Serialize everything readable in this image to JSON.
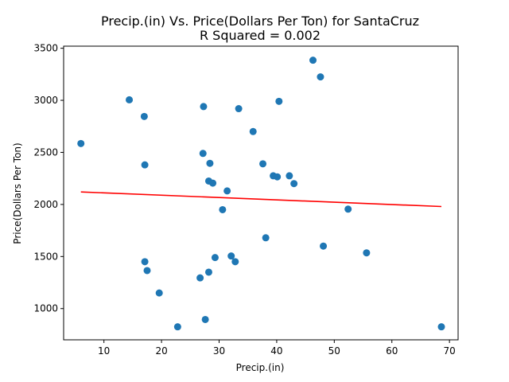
{
  "chart_data": {
    "type": "scatter",
    "title": "Precip.(in) Vs. Price(Dollars Per Ton) for SantaCruz",
    "subtitle": "R Squared =  0.002",
    "xlabel": "Precip.(in)",
    "ylabel": "Price(Dollars Per Ton)",
    "xlim": [
      3,
      71.5
    ],
    "ylim": [
      700,
      3520
    ],
    "xticks": [
      10,
      20,
      30,
      40,
      50,
      60,
      70
    ],
    "yticks": [
      1000,
      1500,
      2000,
      2500,
      3000,
      3500
    ],
    "grid": false,
    "point_color": "#1f77b4",
    "line_color": "#ff0000",
    "points": [
      {
        "x": 6.0,
        "y": 2585
      },
      {
        "x": 14.4,
        "y": 3005
      },
      {
        "x": 17.0,
        "y": 2845
      },
      {
        "x": 17.1,
        "y": 2380
      },
      {
        "x": 17.1,
        "y": 1450
      },
      {
        "x": 17.5,
        "y": 1365
      },
      {
        "x": 19.6,
        "y": 1150
      },
      {
        "x": 22.8,
        "y": 825
      },
      {
        "x": 26.7,
        "y": 1295
      },
      {
        "x": 27.2,
        "y": 2490
      },
      {
        "x": 27.3,
        "y": 2940
      },
      {
        "x": 27.6,
        "y": 895
      },
      {
        "x": 28.2,
        "y": 2225
      },
      {
        "x": 28.2,
        "y": 1350
      },
      {
        "x": 28.4,
        "y": 2395
      },
      {
        "x": 28.9,
        "y": 2205
      },
      {
        "x": 29.3,
        "y": 1490
      },
      {
        "x": 30.6,
        "y": 1950
      },
      {
        "x": 31.4,
        "y": 2130
      },
      {
        "x": 32.1,
        "y": 1505
      },
      {
        "x": 32.8,
        "y": 1450
      },
      {
        "x": 33.4,
        "y": 2920
      },
      {
        "x": 35.9,
        "y": 2700
      },
      {
        "x": 37.6,
        "y": 2390
      },
      {
        "x": 38.1,
        "y": 1680
      },
      {
        "x": 39.4,
        "y": 2275
      },
      {
        "x": 40.1,
        "y": 2265
      },
      {
        "x": 40.4,
        "y": 2990
      },
      {
        "x": 42.2,
        "y": 2275
      },
      {
        "x": 43.0,
        "y": 2200
      },
      {
        "x": 46.3,
        "y": 3385
      },
      {
        "x": 47.6,
        "y": 3225
      },
      {
        "x": 48.1,
        "y": 1600
      },
      {
        "x": 52.4,
        "y": 1955
      },
      {
        "x": 55.6,
        "y": 1535
      },
      {
        "x": 68.6,
        "y": 825
      }
    ],
    "trendline": [
      {
        "x": 6.0,
        "y": 2120
      },
      {
        "x": 68.6,
        "y": 1980
      }
    ]
  }
}
